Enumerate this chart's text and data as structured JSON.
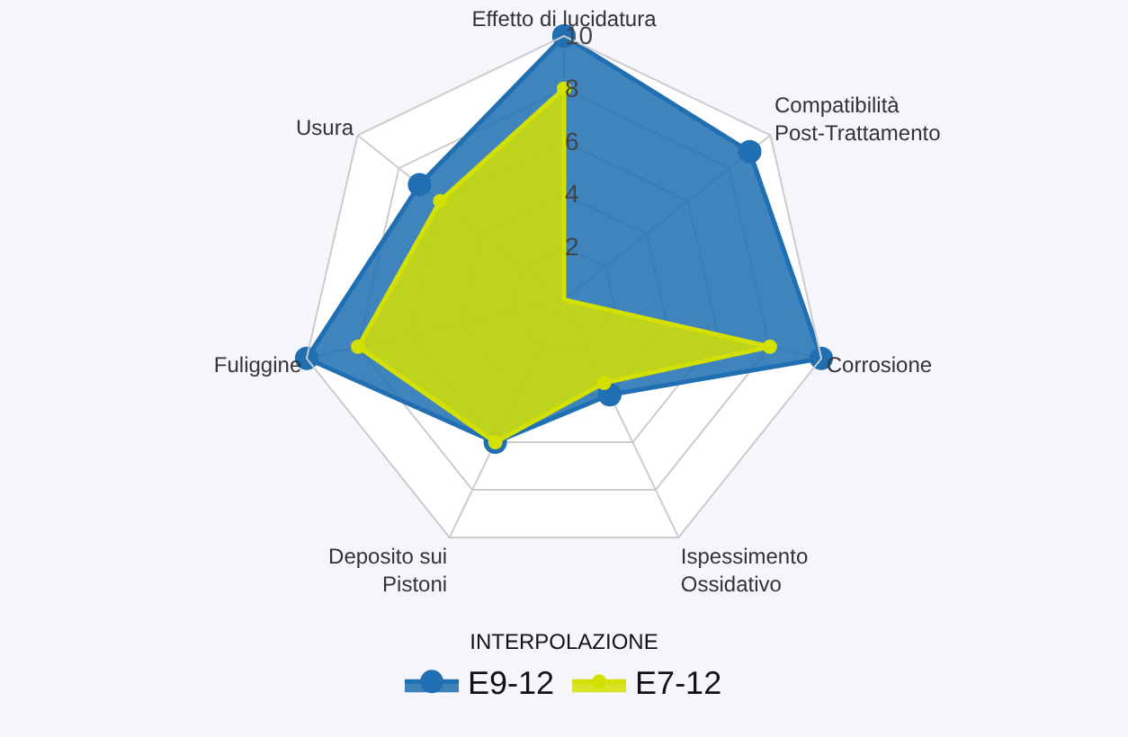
{
  "chart_data": {
    "type": "radar",
    "categories": [
      "Effetto di lucidatura",
      "Compatibilità\nPost-Trattamento",
      "Corrosione",
      "Ispessimento\nOssidativo",
      "Deposito sui\nPistoni",
      "Fuliggine",
      "Usura"
    ],
    "series": [
      {
        "name": "E9-12",
        "color": "#1f6fb2",
        "values": [
          10,
          9,
          10,
          4,
          6,
          10,
          7
        ]
      },
      {
        "name": "E7-12",
        "color": "#d4e000",
        "values": [
          8,
          0,
          8,
          3.5,
          6,
          8,
          6
        ]
      }
    ],
    "ylim": [
      0,
      10
    ],
    "yticks": [
      2,
      4,
      6,
      8,
      10
    ],
    "legend": "bottom",
    "legend_title": "INTERPOLAZIONE",
    "marker": "circle",
    "grid": true
  }
}
